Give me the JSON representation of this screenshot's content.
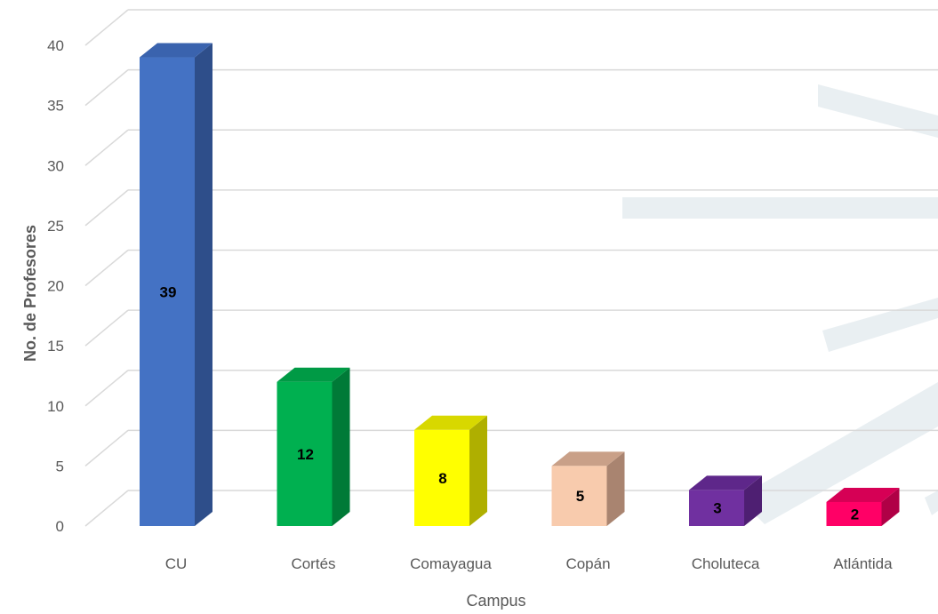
{
  "chart_data": {
    "type": "bar",
    "three_d": true,
    "categories": [
      "CU",
      "Cortés",
      "Comayagua",
      "Copán",
      "Choluteca",
      "Atlántida"
    ],
    "values": [
      39,
      12,
      8,
      5,
      3,
      2
    ],
    "data_labels": [
      "39",
      "12",
      "8",
      "5",
      "3",
      "2"
    ],
    "colors": [
      {
        "front": "#4472C4",
        "side": "#2E4E8A",
        "top": "#3A63AE"
      },
      {
        "front": "#00B050",
        "side": "#007A37",
        "top": "#009A45"
      },
      {
        "front": "#FFFF00",
        "side": "#AFAF00",
        "top": "#D8D800"
      },
      {
        "front": "#F8CBAD",
        "side": "#A98470",
        "top": "#C9A088"
      },
      {
        "front": "#7030A0",
        "side": "#4E1F72",
        "top": "#5E278A"
      },
      {
        "front": "#FF0066",
        "side": "#B00046",
        "top": "#D60055"
      }
    ],
    "xlabel": "Campus",
    "ylabel": "No. de Profesores",
    "ylim": [
      0,
      40
    ],
    "yticks": [
      0,
      5,
      10,
      15,
      20,
      25,
      30,
      35,
      40
    ],
    "grid": true,
    "legend": "none"
  }
}
